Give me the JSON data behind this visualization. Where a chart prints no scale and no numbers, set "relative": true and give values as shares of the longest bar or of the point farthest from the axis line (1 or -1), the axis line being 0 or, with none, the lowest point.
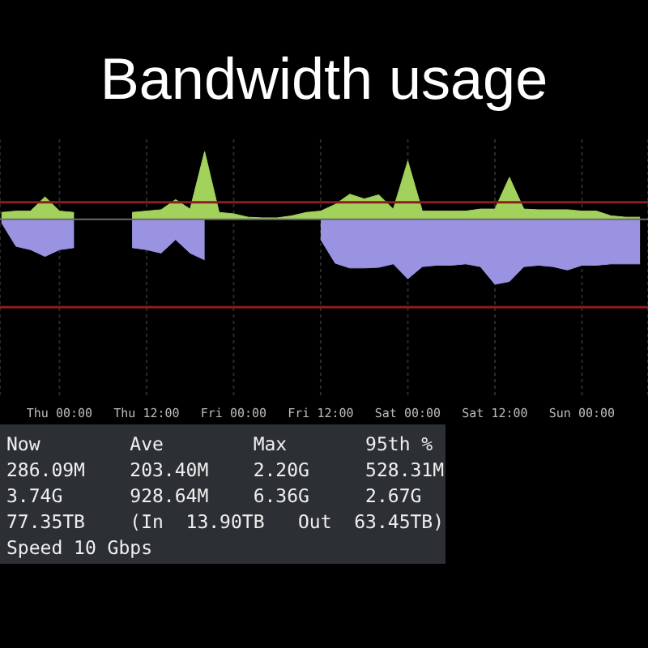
{
  "chart_data": {
    "type": "area",
    "title": "Bandwidth usage",
    "relative": true,
    "grid": "x",
    "legend": false,
    "categories": [
      null,
      null,
      null,
      null,
      "Thu 00:00",
      null,
      null,
      null,
      null,
      null,
      "Thu 12:00",
      null,
      null,
      null,
      null,
      null,
      "Fri 00:00",
      null,
      null,
      null,
      null,
      null,
      "Fri 12:00",
      null,
      null,
      null,
      null,
      null,
      "Sat 00:00",
      null,
      null,
      null,
      null,
      null,
      "Sat 12:00",
      null,
      null,
      null,
      null,
      null,
      "Sun 00:00",
      null,
      null,
      null,
      null
    ],
    "series": [
      {
        "color": "#a2d15c",
        "values": [
          0.1,
          0.12,
          0.12,
          0.33,
          0.12,
          0.1,
          null,
          null,
          null,
          0.1,
          0.12,
          0.14,
          0.29,
          0.15,
          1.0,
          0.1,
          0.08,
          0.03,
          0.02,
          0.02,
          0.05,
          0.1,
          0.12,
          0.22,
          0.37,
          0.3,
          0.36,
          0.15,
          0.86,
          0.12,
          0.12,
          0.12,
          0.12,
          0.15,
          0.15,
          0.62,
          0.15,
          0.14,
          0.14,
          0.14,
          0.12,
          0.12,
          0.05,
          0.03,
          0.03
        ]
      },
      {
        "color": "#9a93e2",
        "values": [
          -0.05,
          -0.4,
          -0.45,
          -0.55,
          -0.45,
          -0.42,
          null,
          null,
          null,
          -0.42,
          -0.45,
          -0.5,
          -0.3,
          -0.5,
          -0.6,
          null,
          null,
          null,
          null,
          null,
          null,
          null,
          -0.3,
          -0.65,
          -0.72,
          -0.72,
          -0.71,
          -0.66,
          -0.88,
          -0.7,
          -0.68,
          -0.68,
          -0.66,
          -0.7,
          -0.96,
          -0.92,
          -0.7,
          -0.68,
          -0.7,
          -0.75,
          -0.68,
          -0.68,
          -0.66,
          -0.66,
          -0.66
        ]
      }
    ],
    "ref_lines": [
      {
        "axis": "y",
        "value": 0.25,
        "color": "#8e1c1c"
      },
      {
        "axis": "y",
        "value": -1.3,
        "color": "#8e1c1c"
      }
    ],
    "annotations": [
      "Now        Ave        Max       95th %",
      "286.09M    203.40M    2.20G     528.31M",
      "3.74G      928.64M    6.36G     2.67G",
      "77.35TB    (In  13.90TB   Out  63.45TB)",
      "Speed 10 Gbps"
    ]
  }
}
